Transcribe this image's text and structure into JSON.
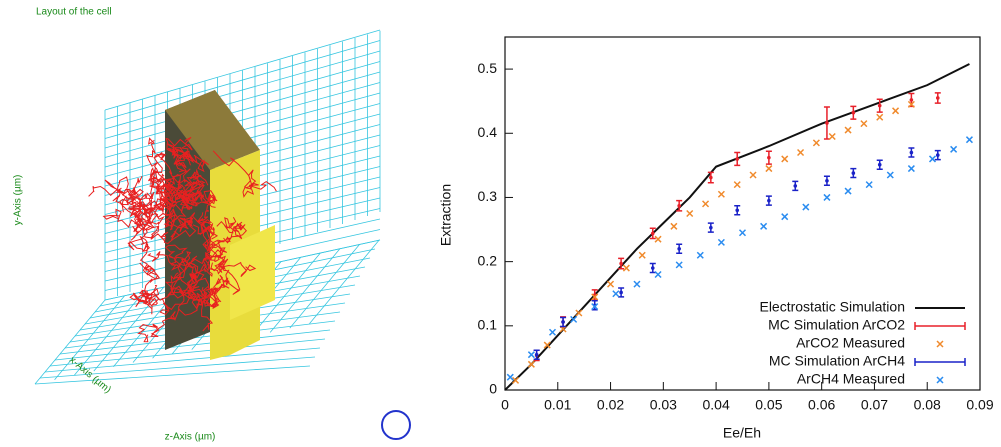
{
  "left_panel": {
    "title": "Layout of the cell",
    "y_axis": "y-Axis (µm)",
    "x_axis": "x-Axis (µm)",
    "z_axis": "z-Axis (µm)"
  },
  "chart_data": {
    "type": "scatter",
    "ylabel": "Extraction",
    "xlabel": "Ee/Eh",
    "xlim": [
      0,
      0.09
    ],
    "xticks": [
      0,
      0.01,
      0.02,
      0.03,
      0.04,
      0.05,
      0.06,
      0.07,
      0.08,
      0.09
    ],
    "ylim": [
      0,
      0.55
    ],
    "yticks": [
      0,
      0.1,
      0.2,
      0.3,
      0.4,
      0.5
    ],
    "legend": "lower right",
    "series": [
      {
        "name": "Electrostatic Simulation",
        "color": "#111111",
        "marker": "line",
        "x": [
          0,
          0.005,
          0.01,
          0.015,
          0.02,
          0.025,
          0.03,
          0.035,
          0.04,
          0.05,
          0.06,
          0.07,
          0.08,
          0.088
        ],
        "values": [
          0,
          0.04,
          0.085,
          0.13,
          0.175,
          0.22,
          0.26,
          0.3,
          0.348,
          0.38,
          0.415,
          0.445,
          0.475,
          0.508
        ]
      },
      {
        "name": "MC Simulation ArCO2",
        "color": "#e8202a",
        "marker": "errorbar",
        "x": [
          0.006,
          0.011,
          0.017,
          0.022,
          0.028,
          0.033,
          0.039,
          0.044,
          0.05,
          0.061,
          0.066,
          0.071,
          0.077,
          0.082
        ],
        "values": [
          0.054,
          0.106,
          0.148,
          0.197,
          0.244,
          0.287,
          0.331,
          0.36,
          0.362,
          0.416,
          0.432,
          0.443,
          0.452,
          0.455
        ],
        "errors": [
          0.008,
          0.008,
          0.008,
          0.008,
          0.008,
          0.008,
          0.008,
          0.01,
          0.01,
          0.025,
          0.01,
          0.01,
          0.01,
          0.008
        ]
      },
      {
        "name": "ArCO2 Measured",
        "color": "#f08a2c",
        "marker": "x",
        "x": [
          0.002,
          0.005,
          0.008,
          0.011,
          0.014,
          0.017,
          0.02,
          0.023,
          0.026,
          0.029,
          0.032,
          0.035,
          0.038,
          0.041,
          0.044,
          0.047,
          0.05,
          0.053,
          0.056,
          0.059,
          0.062,
          0.065,
          0.068,
          0.071,
          0.074,
          0.077
        ],
        "values": [
          0.015,
          0.04,
          0.07,
          0.095,
          0.12,
          0.145,
          0.165,
          0.19,
          0.21,
          0.235,
          0.255,
          0.275,
          0.29,
          0.305,
          0.32,
          0.335,
          0.345,
          0.36,
          0.37,
          0.385,
          0.395,
          0.405,
          0.415,
          0.425,
          0.435,
          0.445
        ]
      },
      {
        "name": "MC Simulation ArCH4",
        "color": "#1a22c8",
        "marker": "errorbar",
        "x": [
          0.006,
          0.011,
          0.017,
          0.022,
          0.028,
          0.033,
          0.039,
          0.044,
          0.05,
          0.055,
          0.061,
          0.066,
          0.071,
          0.077,
          0.082
        ],
        "values": [
          0.055,
          0.106,
          0.132,
          0.152,
          0.19,
          0.22,
          0.253,
          0.28,
          0.295,
          0.318,
          0.326,
          0.338,
          0.351,
          0.37,
          0.366
        ],
        "errors": [
          0.007,
          0.007,
          0.007,
          0.007,
          0.007,
          0.007,
          0.007,
          0.007,
          0.007,
          0.007,
          0.007,
          0.007,
          0.007,
          0.007,
          0.007
        ]
      },
      {
        "name": "ArCH4 Measured",
        "color": "#2a8cf0",
        "marker": "x",
        "x": [
          0.001,
          0.005,
          0.009,
          0.013,
          0.017,
          0.021,
          0.025,
          0.029,
          0.033,
          0.037,
          0.041,
          0.045,
          0.049,
          0.053,
          0.057,
          0.061,
          0.065,
          0.069,
          0.073,
          0.077,
          0.081,
          0.085,
          0.088
        ],
        "values": [
          0.02,
          0.055,
          0.09,
          0.11,
          0.13,
          0.15,
          0.165,
          0.18,
          0.195,
          0.21,
          0.23,
          0.245,
          0.255,
          0.27,
          0.285,
          0.3,
          0.31,
          0.32,
          0.335,
          0.345,
          0.36,
          0.375,
          0.39
        ]
      }
    ]
  }
}
